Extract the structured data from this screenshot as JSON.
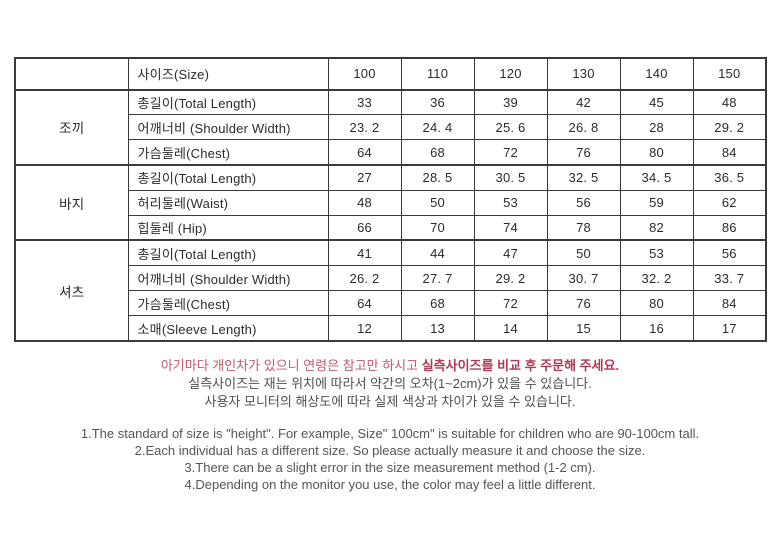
{
  "table": {
    "header": {
      "corner": "",
      "label": "사이즈(Size)",
      "sizes": [
        "100",
        "110",
        "120",
        "130",
        "140",
        "150"
      ]
    },
    "groups": [
      {
        "name": "조끼",
        "rows": [
          {
            "label": "총길이(Total Length)",
            "values": [
              "33",
              "36",
              "39",
              "42",
              "45",
              "48"
            ]
          },
          {
            "label": "어깨너비 (Shoulder Width)",
            "values": [
              "23. 2",
              "24. 4",
              "25. 6",
              "26. 8",
              "28",
              "29. 2"
            ]
          },
          {
            "label": "가슴둘레(Chest)",
            "values": [
              "64",
              "68",
              "72",
              "76",
              "80",
              "84"
            ]
          }
        ]
      },
      {
        "name": "바지",
        "rows": [
          {
            "label": "총길이(Total Length)",
            "values": [
              "27",
              "28. 5",
              "30. 5",
              "32. 5",
              "34. 5",
              "36. 5"
            ]
          },
          {
            "label": "허리둘레(Waist)",
            "values": [
              "48",
              "50",
              "53",
              "56",
              "59",
              "62"
            ]
          },
          {
            "label": "힙둘레 (Hip)",
            "values": [
              "66",
              "70",
              "74",
              "78",
              "82",
              "86"
            ]
          }
        ]
      },
      {
        "name": "셔츠",
        "rows": [
          {
            "label": "총길이(Total Length)",
            "values": [
              "41",
              "44",
              "47",
              "50",
              "53",
              "56"
            ]
          },
          {
            "label": "어깨너비 (Shoulder Width)",
            "values": [
              "26. 2",
              "27. 7",
              "29. 2",
              "30. 7",
              "32. 2",
              "33. 7"
            ]
          },
          {
            "label": "가슴둘레(Chest)",
            "values": [
              "64",
              "68",
              "72",
              "76",
              "80",
              "84"
            ]
          },
          {
            "label": "소매(Sleeve Length)",
            "values": [
              "12",
              "13",
              "14",
              "15",
              "16",
              "17"
            ]
          }
        ]
      }
    ]
  },
  "notes_ko": {
    "line1_regular": "아기마다 개인차가 있으니 연령은 참고만 하시고 ",
    "line1_emphasis": "실측사이즈를 비교 후 주문해 주세요.",
    "line2": "실측사이즈는 재는 위치에 따라서 약간의  오차(1~2cm)가 있을 수 있습니다.",
    "line3": "사용자 모니터의 해상도에 따라 실제 색상과 차이가 있을 수 있습니다."
  },
  "notes_en": [
    "1.The standard of size is \"height\". For example,  Size\" 100cm\" is suitable for children who are 90-100cm tall.",
    "2.Each individual has a different size. So please actually measure it and choose the size.",
    "3.There can be a slight error in the size measurement method (1-2 cm).",
    "4.Depending on the monitor you use, the color may feel a little different."
  ],
  "colors": {
    "table_border": "#3a3a3a",
    "table_text": "#2b2b2b",
    "note_red": "#c2576e",
    "note_red_emphasis": "#ad3a56",
    "note_gray": "#4f4f4f",
    "note_en_gray": "#555555"
  }
}
